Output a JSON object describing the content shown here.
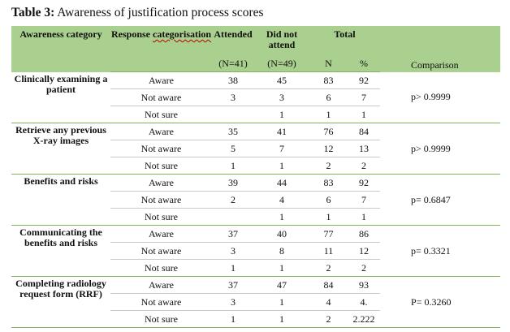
{
  "caption": {
    "label": "Table 3:",
    "text": " Awareness of justification process scores"
  },
  "header": {
    "awareness_category": "Awareness category",
    "response_categorisation": "Response categorisation",
    "attended": "Attended",
    "did_not_attend": "Did not attend",
    "total": "Total",
    "attended_n": "(N=41)",
    "did_not_attend_n": "(N=49)",
    "n": "N",
    "pct": "%",
    "comparison": "Comparison"
  },
  "groups": [
    {
      "category": "Clinically examining a patient",
      "comparison": "p> 0.9999",
      "rows": [
        {
          "response": "Aware",
          "attended": "38",
          "not_attend": "45",
          "n": "83",
          "pct": "92"
        },
        {
          "response": "Not aware",
          "attended": "3",
          "not_attend": "3",
          "n": "6",
          "pct": "7"
        },
        {
          "response": "Not sure",
          "attended": "",
          "not_attend": "1",
          "n": "1",
          "pct": "1"
        }
      ]
    },
    {
      "category": "Retrieve any previous X-ray images",
      "comparison": "p> 0.9999",
      "rows": [
        {
          "response": "Aware",
          "attended": "35",
          "not_attend": "41",
          "n": "76",
          "pct": "84"
        },
        {
          "response": "Not aware",
          "attended": "5",
          "not_attend": "7",
          "n": "12",
          "pct": "13"
        },
        {
          "response": "Not sure",
          "attended": "1",
          "not_attend": "1",
          "n": "2",
          "pct": "2"
        }
      ]
    },
    {
      "category": "Benefits and risks",
      "comparison": "p= 0.6847",
      "rows": [
        {
          "response": "Aware",
          "attended": "39",
          "not_attend": "44",
          "n": "83",
          "pct": "92"
        },
        {
          "response": "Not aware",
          "attended": "2",
          "not_attend": "4",
          "n": "6",
          "pct": "7"
        },
        {
          "response": "Not sure",
          "attended": "",
          "not_attend": "1",
          "n": "1",
          "pct": "1"
        }
      ]
    },
    {
      "category": "Communicating the benefits and risks",
      "comparison": "p= 0.3321",
      "rows": [
        {
          "response": "Aware",
          "attended": "37",
          "not_attend": "40",
          "n": "77",
          "pct": "86"
        },
        {
          "response": "Not aware",
          "attended": "3",
          "not_attend": "8",
          "n": "11",
          "pct": "12"
        },
        {
          "response": "Not sure",
          "attended": "1",
          "not_attend": "1",
          "n": "2",
          "pct": "2"
        }
      ]
    },
    {
      "category": "Completing radiology request form (RRF)",
      "comparison": "P= 0.3260",
      "rows": [
        {
          "response": "Aware",
          "attended": "37",
          "not_attend": "47",
          "n": "84",
          "pct": "93"
        },
        {
          "response": "Not aware",
          "attended": "3",
          "not_attend": "1",
          "n": "4",
          "pct": "4."
        },
        {
          "response": "Not sure",
          "attended": "1",
          "not_attend": "1",
          "n": "2",
          "pct": "2.222"
        }
      ]
    }
  ]
}
